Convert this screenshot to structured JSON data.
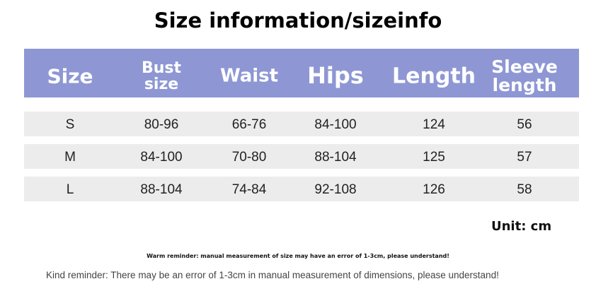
{
  "title": "Size information/sizeinfo",
  "table": {
    "header": [
      "Size",
      "Bust size",
      "Waist",
      "Hips",
      "Length",
      "Sleeve length"
    ],
    "rows": [
      [
        "S",
        "80-96",
        "66-76",
        "84-100",
        "124",
        "56"
      ],
      [
        "M",
        "84-100",
        "70-80",
        "88-104",
        "125",
        "57"
      ],
      [
        "L",
        "88-104",
        "74-84",
        "92-108",
        "126",
        "58"
      ]
    ]
  },
  "unit": "Unit: cm",
  "warm_reminder": "Warm reminder: manual measurement of size may have an error of 1-3cm, please understand!",
  "kind_reminder": "Kind reminder: There may be an error of 1-3cm in manual measurement of dimensions, please understand!"
}
